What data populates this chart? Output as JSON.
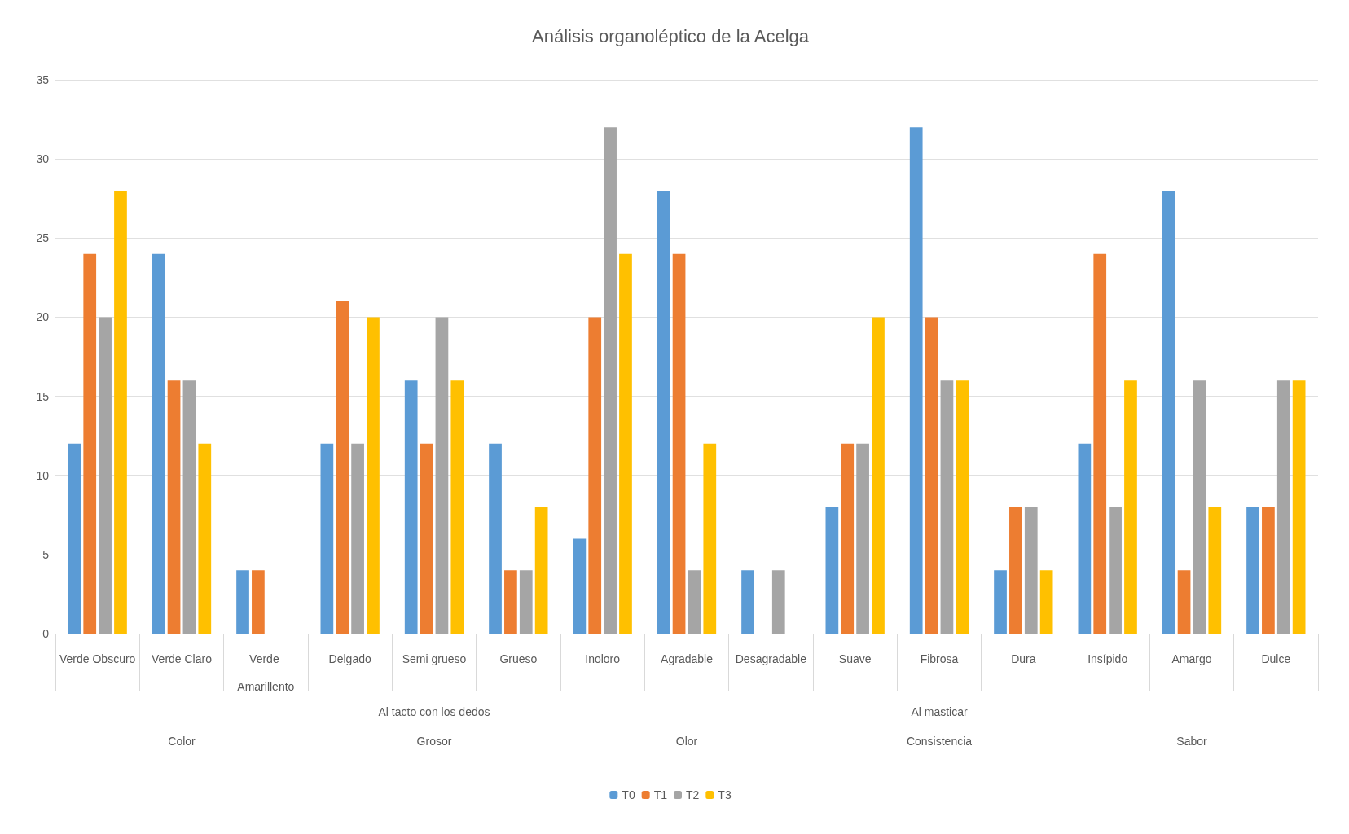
{
  "chart_data": {
    "type": "bar",
    "title": "Análisis organoléptico de la Acelga",
    "categories": [
      "Verde Obscuro",
      "Verde Claro",
      "Verde Amarillento",
      "Delgado",
      "Semi grueso",
      "Grueso",
      "Inoloro",
      "Agradable",
      "Desagradable",
      "Suave",
      "Fibrosa",
      "Dura",
      "Insípido",
      "Amargo",
      "Dulce"
    ],
    "series": [
      {
        "name": "T0",
        "color": "#5b9bd5",
        "values": [
          12,
          24,
          4,
          12,
          16,
          12,
          6,
          28,
          4,
          8,
          32,
          4,
          12,
          28,
          8
        ]
      },
      {
        "name": "T1",
        "color": "#ed7d31",
        "values": [
          24,
          16,
          4,
          21,
          12,
          4,
          20,
          24,
          0,
          12,
          20,
          8,
          24,
          4,
          8
        ]
      },
      {
        "name": "T2",
        "color": "#a5a5a5",
        "values": [
          20,
          16,
          0,
          12,
          20,
          4,
          32,
          4,
          4,
          12,
          16,
          8,
          8,
          16,
          16
        ]
      },
      {
        "name": "T3",
        "color": "#ffc000",
        "values": [
          28,
          12,
          0,
          20,
          16,
          8,
          24,
          12,
          0,
          20,
          16,
          4,
          16,
          8,
          16
        ]
      }
    ],
    "annotations": [
      "Color",
      "Al tacto con los dedos\nGrosor",
      "Olor",
      "Al masticar\nConsistencia",
      "Sabor"
    ],
    "ylim": [
      0,
      35
    ],
    "yticks": [
      0,
      5,
      10,
      15,
      20,
      25,
      30,
      35
    ],
    "grid": "y",
    "legend": "bottom"
  }
}
